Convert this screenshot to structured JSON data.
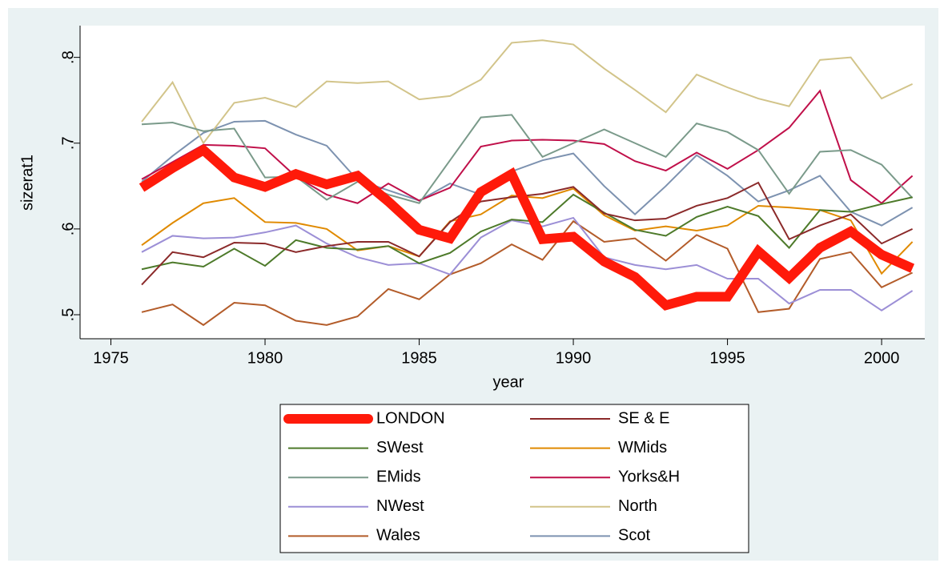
{
  "chart_data": {
    "type": "line",
    "x_label": "year",
    "y_label": "sizerat1",
    "x": [
      1976,
      1977,
      1978,
      1979,
      1980,
      1981,
      1982,
      1983,
      1984,
      1985,
      1986,
      1987,
      1988,
      1989,
      1990,
      1991,
      1992,
      1993,
      1994,
      1995,
      1996,
      1997,
      1998,
      1999,
      2000,
      2001
    ],
    "xlim": [
      1974,
      2001.4
    ],
    "xticks": [
      1975,
      1980,
      1985,
      1990,
      1995,
      2000
    ],
    "ylim": [
      0.472,
      0.837
    ],
    "yticks": [
      {
        "value": 0.5,
        "label": ".5"
      },
      {
        "value": 0.6,
        "label": ".6"
      },
      {
        "value": 0.7,
        "label": ".7"
      },
      {
        "value": 0.8,
        "label": ".8"
      }
    ],
    "legend_position": "bottom",
    "series": [
      {
        "name": "LONDON",
        "color": "#ff1a0a",
        "line_width": 12,
        "values": [
          0.648,
          0.671,
          0.692,
          0.66,
          0.649,
          0.664,
          0.652,
          0.662,
          0.632,
          0.599,
          0.589,
          0.643,
          0.664,
          0.588,
          0.591,
          0.562,
          0.544,
          0.511,
          0.521,
          0.521,
          0.574,
          0.543,
          0.578,
          0.597,
          0.57,
          0.554
        ]
      },
      {
        "name": "SE & E",
        "color": "#8b2a2a",
        "line_width": 2,
        "values": [
          0.535,
          0.573,
          0.567,
          0.584,
          0.583,
          0.573,
          0.58,
          0.585,
          0.585,
          0.568,
          0.608,
          0.632,
          0.637,
          0.641,
          0.649,
          0.618,
          0.61,
          0.612,
          0.627,
          0.636,
          0.654,
          0.588,
          0.604,
          0.617,
          0.583,
          0.6
        ]
      },
      {
        "name": "SWest",
        "color": "#4d7a2a",
        "line_width": 2,
        "values": [
          0.553,
          0.561,
          0.556,
          0.577,
          0.557,
          0.587,
          0.578,
          0.576,
          0.58,
          0.56,
          0.572,
          0.597,
          0.611,
          0.608,
          0.64,
          0.619,
          0.599,
          0.592,
          0.614,
          0.626,
          0.615,
          0.578,
          0.622,
          0.62,
          0.629,
          0.637
        ]
      },
      {
        "name": "WMids",
        "color": "#e08a00",
        "line_width": 2,
        "values": [
          0.581,
          0.607,
          0.63,
          0.636,
          0.608,
          0.607,
          0.6,
          0.575,
          0.58,
          0.568,
          0.609,
          0.617,
          0.639,
          0.636,
          0.647,
          0.616,
          0.598,
          0.603,
          0.598,
          0.604,
          0.627,
          0.625,
          0.622,
          0.61,
          0.548,
          0.585
        ]
      },
      {
        "name": "EMids",
        "color": "#7a9a8a",
        "line_width": 2,
        "values": [
          0.722,
          0.724,
          0.714,
          0.717,
          0.66,
          0.661,
          0.634,
          0.655,
          0.64,
          0.63,
          0.68,
          0.73,
          0.733,
          0.684,
          0.7,
          0.716,
          0.7,
          0.684,
          0.723,
          0.713,
          0.692,
          0.641,
          0.69,
          0.692,
          0.675,
          0.636
        ]
      },
      {
        "name": "Yorks&H",
        "color": "#c0104a",
        "line_width": 2,
        "values": [
          0.658,
          0.678,
          0.698,
          0.697,
          0.694,
          0.661,
          0.64,
          0.63,
          0.653,
          0.633,
          0.648,
          0.696,
          0.703,
          0.704,
          0.703,
          0.699,
          0.679,
          0.668,
          0.689,
          0.67,
          0.692,
          0.718,
          0.761,
          0.657,
          0.63,
          0.662
        ]
      },
      {
        "name": "NWest",
        "color": "#9c8fd6",
        "line_width": 2,
        "values": [
          0.573,
          0.592,
          0.589,
          0.59,
          0.596,
          0.604,
          0.583,
          0.567,
          0.558,
          0.56,
          0.547,
          0.59,
          0.61,
          0.603,
          0.613,
          0.567,
          0.558,
          0.553,
          0.558,
          0.542,
          0.542,
          0.513,
          0.529,
          0.529,
          0.505,
          0.528
        ]
      },
      {
        "name": "North",
        "color": "#d2c48a",
        "line_width": 2,
        "values": [
          0.725,
          0.771,
          0.7,
          0.747,
          0.753,
          0.742,
          0.772,
          0.77,
          0.772,
          0.751,
          0.755,
          0.774,
          0.817,
          0.82,
          0.815,
          0.787,
          0.762,
          0.736,
          0.78,
          0.765,
          0.752,
          0.743,
          0.797,
          0.8,
          0.752,
          0.769
        ]
      },
      {
        "name": "Wales",
        "color": "#b35c2a",
        "line_width": 2,
        "values": [
          0.503,
          0.512,
          0.488,
          0.514,
          0.511,
          0.493,
          0.488,
          0.498,
          0.53,
          0.518,
          0.547,
          0.56,
          0.582,
          0.564,
          0.609,
          0.585,
          0.589,
          0.563,
          0.593,
          0.577,
          0.503,
          0.507,
          0.565,
          0.573,
          0.532,
          0.549
        ]
      },
      {
        "name": "Scot",
        "color": "#7d92b0",
        "line_width": 2,
        "values": [
          0.655,
          0.685,
          0.712,
          0.725,
          0.726,
          0.71,
          0.697,
          0.657,
          0.645,
          0.633,
          0.653,
          0.64,
          0.667,
          0.68,
          0.688,
          0.65,
          0.617,
          0.65,
          0.686,
          0.662,
          0.632,
          0.645,
          0.662,
          0.62,
          0.604,
          0.625
        ]
      }
    ]
  }
}
